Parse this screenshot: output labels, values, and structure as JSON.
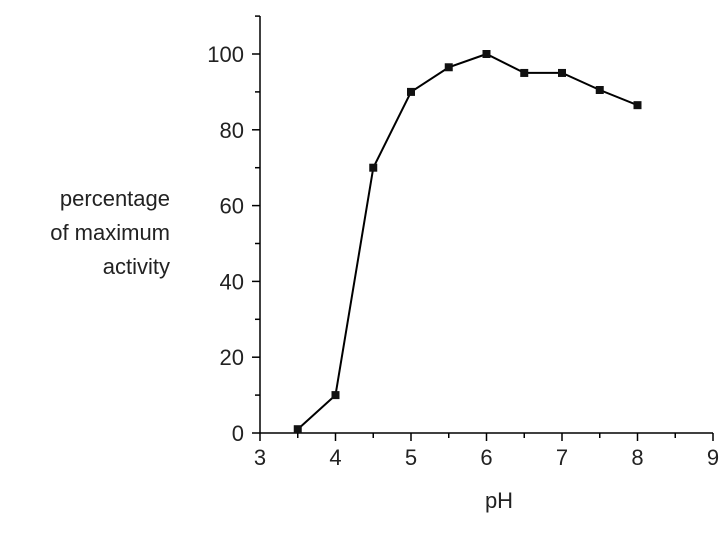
{
  "chart_data": {
    "type": "line",
    "title": "",
    "xlabel": "pH",
    "ylabel_lines": [
      "percentage",
      "of maximum",
      "activity"
    ],
    "xlim": [
      3,
      9
    ],
    "ylim": [
      0,
      100
    ],
    "x_ticks": [
      3,
      4,
      5,
      6,
      7,
      8,
      9
    ],
    "y_ticks": [
      0,
      20,
      40,
      60,
      80,
      100
    ],
    "grid": false,
    "marker": "square",
    "series": [
      {
        "x": [
          3.5,
          4.0,
          4.5,
          5.0,
          5.5,
          6.0,
          6.5,
          7.0,
          7.5,
          8.0
        ],
        "y": [
          1,
          10,
          70,
          90,
          96.5,
          100,
          95,
          95,
          90.5,
          86.5
        ]
      }
    ]
  }
}
